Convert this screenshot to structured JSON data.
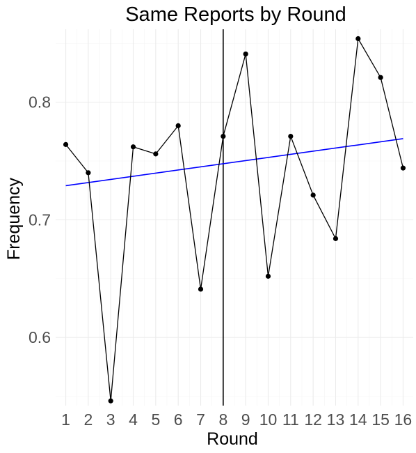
{
  "chart_data": {
    "type": "line",
    "title": "Same Reports by Round",
    "xlabel": "Round",
    "ylabel": "Frequency",
    "x_ticks": [
      "1",
      "2",
      "3",
      "4",
      "5",
      "6",
      "7",
      "8",
      "9",
      "10",
      "11",
      "12",
      "13",
      "14",
      "15",
      "16"
    ],
    "y_ticks": [
      "0.6",
      "0.7",
      "0.8"
    ],
    "xlim": [
      0.55,
      16.45
    ],
    "ylim": [
      0.542,
      0.862
    ],
    "grid": true,
    "series": [
      {
        "x": [
          1,
          2,
          3,
          4,
          5,
          6,
          7,
          8,
          9,
          10,
          11,
          12,
          13,
          14,
          15,
          16
        ],
        "values": [
          0.764,
          0.74,
          0.546,
          0.762,
          0.756,
          0.78,
          0.641,
          0.771,
          0.841,
          0.652,
          0.771,
          0.721,
          0.684,
          0.854,
          0.821,
          0.744
        ],
        "color": "#000000"
      }
    ],
    "trend_line": {
      "color": "#0000ff",
      "x": [
        1,
        16
      ],
      "values": [
        0.729,
        0.769
      ]
    },
    "vline": {
      "x": 8,
      "color": "#000000"
    }
  }
}
